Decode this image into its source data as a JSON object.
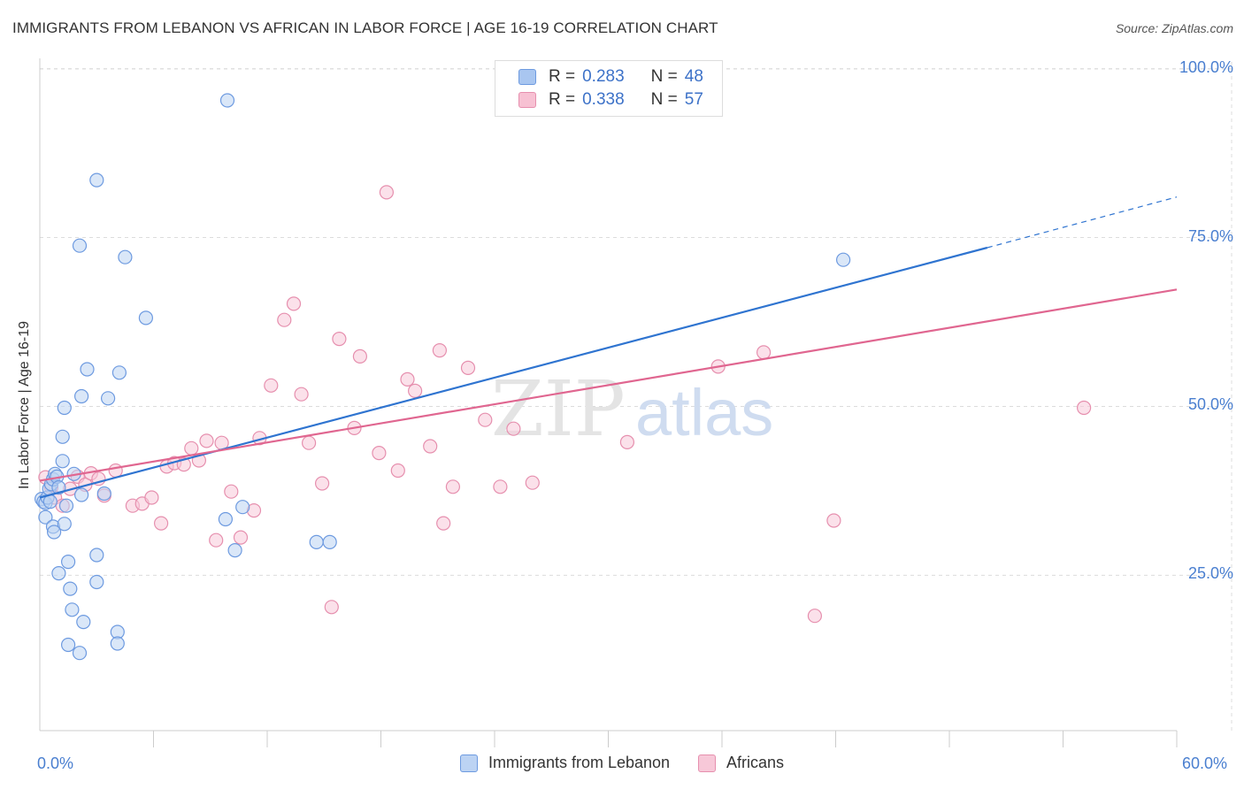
{
  "title": "IMMIGRANTS FROM LEBANON VS AFRICAN IN LABOR FORCE | AGE 16-19 CORRELATION CHART",
  "source": "Source: ZipAtlas.com",
  "watermark": {
    "zip": "ZIP",
    "atlas": "atlas"
  },
  "legend": {
    "rows": [
      {
        "r_label": "R =",
        "r_value": "0.283",
        "n_label": "N =",
        "n_value": "48",
        "color": "#a9c6f0",
        "border": "#6d9ae0"
      },
      {
        "r_label": "R =",
        "r_value": "0.338",
        "n_label": "N =",
        "n_value": "57",
        "color": "#f7c1d3",
        "border": "#e68fae"
      }
    ]
  },
  "chart_data": {
    "type": "scatter",
    "title": "IMMIGRANTS FROM LEBANON VS AFRICAN IN LABOR FORCE | AGE 16-19 CORRELATION CHART",
    "xlabel": "",
    "ylabel": "In Labor Force | Age 16-19",
    "xlim": [
      0,
      60
    ],
    "ylim": [
      2,
      101
    ],
    "x_tick_labels": [
      "0.0%",
      "60.0%"
    ],
    "y_ticks": [
      25,
      50,
      75,
      100
    ],
    "y_tick_labels": [
      "25.0%",
      "50.0%",
      "75.0%",
      "100.0%"
    ],
    "grid": true,
    "legend_placement": "bottom",
    "series": [
      {
        "name": "Immigrants from Lebanon",
        "color": "#6d9ae0",
        "fill": "#bcd3f3",
        "line_color": "#2f74d0",
        "trend": {
          "x0": 0,
          "y0": 36.5,
          "x1": 50,
          "y1": 73.5,
          "dash_to_x": 60,
          "dash_to_y": 81
        },
        "points": [
          [
            0.1,
            36.3
          ],
          [
            0.2,
            35.9
          ],
          [
            0.3,
            35.7
          ],
          [
            0.4,
            36.5
          ],
          [
            0.5,
            37.8
          ],
          [
            0.6,
            38.5
          ],
          [
            0.7,
            39.2
          ],
          [
            0.8,
            40.0
          ],
          [
            0.9,
            39.6
          ],
          [
            1.0,
            38.0
          ],
          [
            0.3,
            33.6
          ],
          [
            0.7,
            32.2
          ],
          [
            0.75,
            31.4
          ],
          [
            1.3,
            32.6
          ],
          [
            1.4,
            35.3
          ],
          [
            1.5,
            27.0
          ],
          [
            1.6,
            23.0
          ],
          [
            1.7,
            19.9
          ],
          [
            2.3,
            18.1
          ],
          [
            1.5,
            14.7
          ],
          [
            2.1,
            13.5
          ],
          [
            1.2,
            41.9
          ],
          [
            1.2,
            45.5
          ],
          [
            1.3,
            49.8
          ],
          [
            2.2,
            51.5
          ],
          [
            2.5,
            55.5
          ],
          [
            3.6,
            51.2
          ],
          [
            4.2,
            55.0
          ],
          [
            5.6,
            63.1
          ],
          [
            4.5,
            72.1
          ],
          [
            2.1,
            73.8
          ],
          [
            3.0,
            83.5
          ],
          [
            9.9,
            95.3
          ],
          [
            3.0,
            28.0
          ],
          [
            3.0,
            24.0
          ],
          [
            4.1,
            16.6
          ],
          [
            4.1,
            14.9
          ],
          [
            1.0,
            25.3
          ],
          [
            9.8,
            33.3
          ],
          [
            10.3,
            28.7
          ],
          [
            10.7,
            35.1
          ],
          [
            14.6,
            29.9
          ],
          [
            15.3,
            29.9
          ],
          [
            42.4,
            71.7
          ],
          [
            1.8,
            40.0
          ],
          [
            2.2,
            36.9
          ],
          [
            0.55,
            35.9
          ],
          [
            3.4,
            37.1
          ]
        ]
      },
      {
        "name": "Africans",
        "color": "#e68fae",
        "fill": "#f7c8d8",
        "line_color": "#e06690",
        "trend": {
          "x0": 0,
          "y0": 39.0,
          "x1": 60,
          "y1": 67.3
        },
        "points": [
          [
            0.3,
            39.5
          ],
          [
            0.6,
            38.0
          ],
          [
            0.8,
            36.5
          ],
          [
            1.2,
            35.3
          ],
          [
            1.6,
            37.8
          ],
          [
            2.0,
            39.6
          ],
          [
            2.4,
            38.4
          ],
          [
            2.7,
            40.1
          ],
          [
            3.1,
            39.3
          ],
          [
            3.4,
            36.8
          ],
          [
            4.0,
            40.5
          ],
          [
            4.9,
            35.3
          ],
          [
            5.4,
            35.6
          ],
          [
            5.9,
            36.5
          ],
          [
            6.4,
            32.7
          ],
          [
            6.7,
            41.1
          ],
          [
            7.1,
            41.6
          ],
          [
            7.6,
            41.4
          ],
          [
            8.0,
            43.8
          ],
          [
            8.4,
            42.0
          ],
          [
            8.8,
            44.9
          ],
          [
            9.3,
            30.2
          ],
          [
            9.6,
            44.6
          ],
          [
            10.1,
            37.4
          ],
          [
            10.6,
            30.6
          ],
          [
            11.3,
            34.6
          ],
          [
            11.6,
            45.3
          ],
          [
            12.2,
            53.1
          ],
          [
            12.9,
            62.8
          ],
          [
            13.4,
            65.2
          ],
          [
            13.8,
            51.8
          ],
          [
            14.2,
            44.6
          ],
          [
            14.9,
            38.6
          ],
          [
            15.4,
            20.3
          ],
          [
            15.8,
            60.0
          ],
          [
            16.6,
            46.8
          ],
          [
            16.9,
            57.4
          ],
          [
            17.9,
            43.1
          ],
          [
            18.3,
            81.7
          ],
          [
            18.9,
            40.5
          ],
          [
            19.4,
            54.0
          ],
          [
            19.8,
            52.3
          ],
          [
            20.6,
            44.1
          ],
          [
            21.1,
            58.3
          ],
          [
            21.3,
            32.7
          ],
          [
            21.8,
            38.1
          ],
          [
            22.6,
            55.7
          ],
          [
            23.5,
            48.0
          ],
          [
            24.3,
            38.1
          ],
          [
            25.0,
            46.7
          ],
          [
            26.0,
            38.7
          ],
          [
            31.0,
            44.7
          ],
          [
            35.8,
            55.9
          ],
          [
            38.2,
            58.0
          ],
          [
            40.9,
            19.0
          ],
          [
            41.9,
            33.1
          ],
          [
            55.1,
            49.8
          ]
        ]
      }
    ]
  },
  "bottom_legend": [
    {
      "label": "Immigrants from Lebanon",
      "color": "#bcd3f3",
      "border": "#6d9ae0"
    },
    {
      "label": "Africans",
      "color": "#f7c8d8",
      "border": "#e68fae"
    }
  ]
}
